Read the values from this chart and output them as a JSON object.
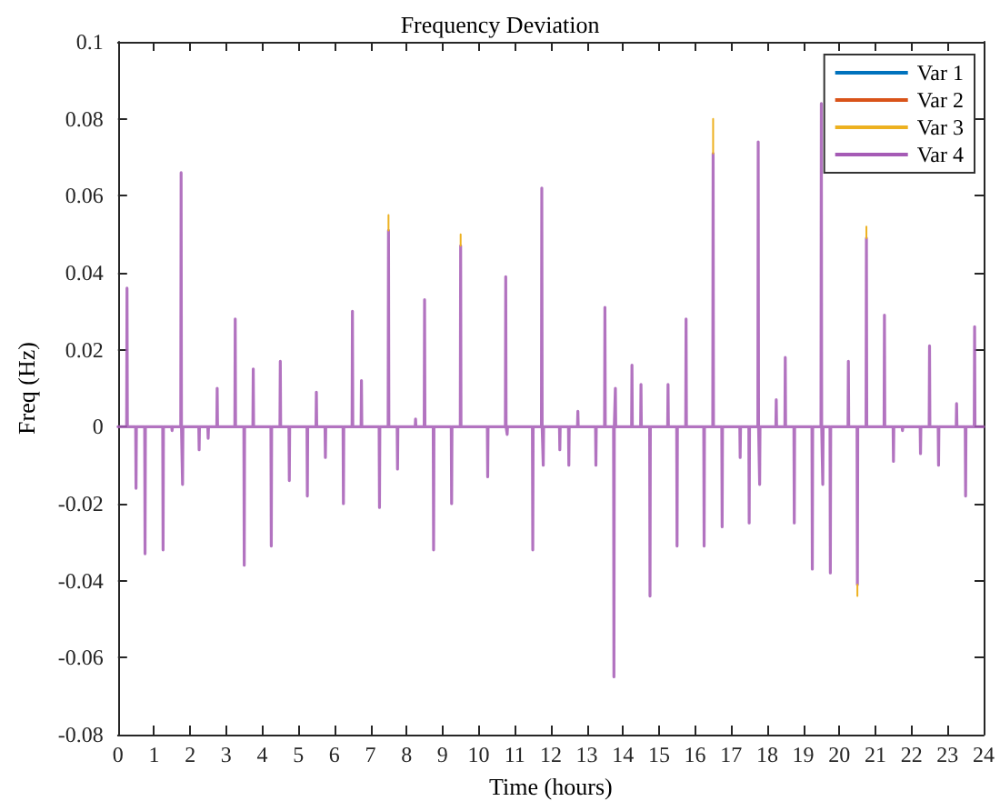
{
  "chart_data": {
    "type": "line",
    "title": "Frequency Deviation",
    "xlabel": "Time (hours)",
    "ylabel": "Freq (Hz)",
    "x": [
      0,
      0.24,
      0.25,
      0.26,
      0.49,
      0.5,
      0.51,
      0.74,
      0.75,
      0.76,
      1.24,
      1.25,
      1.26,
      1.49,
      1.5,
      1.51,
      1.74,
      1.75,
      1.76,
      1.78,
      1.79,
      1.8,
      2.24,
      2.25,
      2.26,
      2.49,
      2.5,
      2.51,
      2.74,
      2.75,
      2.76,
      3.24,
      3.25,
      3.26,
      3.49,
      3.5,
      3.51,
      3.74,
      3.75,
      3.76,
      4.24,
      4.25,
      4.26,
      4.49,
      4.5,
      4.51,
      4.74,
      4.75,
      4.76,
      5.24,
      5.25,
      5.26,
      5.49,
      5.5,
      5.51,
      5.74,
      5.75,
      5.76,
      6.24,
      6.25,
      6.26,
      6.49,
      6.5,
      6.51,
      6.74,
      6.75,
      6.76,
      7.24,
      7.25,
      7.26,
      7.49,
      7.5,
      7.51,
      7.74,
      7.75,
      7.76,
      8.24,
      8.25,
      8.26,
      8.49,
      8.5,
      8.51,
      8.74,
      8.75,
      8.76,
      9.24,
      9.25,
      9.26,
      9.49,
      9.5,
      9.51,
      10.24,
      10.25,
      10.26,
      10.74,
      10.75,
      10.76,
      10.78,
      10.79,
      10.8,
      11.49,
      11.5,
      11.51,
      11.74,
      11.75,
      11.76,
      11.78,
      11.79,
      11.8,
      12.24,
      12.25,
      12.26,
      12.49,
      12.5,
      12.51,
      12.74,
      12.75,
      12.76,
      13.24,
      13.25,
      13.26,
      13.49,
      13.5,
      13.51,
      13.74,
      13.75,
      13.76,
      13.78,
      13.79,
      13.8,
      14.24,
      14.25,
      14.26,
      14.49,
      14.5,
      14.51,
      14.74,
      14.75,
      14.76,
      15.24,
      15.25,
      15.26,
      15.49,
      15.5,
      15.51,
      15.74,
      15.75,
      15.76,
      16.24,
      16.25,
      16.26,
      16.49,
      16.5,
      16.51,
      16.74,
      16.75,
      16.76,
      17.24,
      17.25,
      17.26,
      17.49,
      17.5,
      17.51,
      17.74,
      17.75,
      17.76,
      17.78,
      17.79,
      17.8,
      18.24,
      18.25,
      18.26,
      18.49,
      18.5,
      18.51,
      18.74,
      18.75,
      18.76,
      19.24,
      19.25,
      19.26,
      19.49,
      19.5,
      19.51,
      19.53,
      19.54,
      19.55,
      19.74,
      19.75,
      19.76,
      20.24,
      20.25,
      20.26,
      20.49,
      20.5,
      20.51,
      20.74,
      20.75,
      20.76,
      21.24,
      21.25,
      21.26,
      21.49,
      21.5,
      21.51,
      21.74,
      21.75,
      21.76,
      22.24,
      22.25,
      22.26,
      22.49,
      22.5,
      22.51,
      22.74,
      22.75,
      22.76,
      23.24,
      23.25,
      23.26,
      23.49,
      23.5,
      23.51,
      23.74,
      23.75,
      23.76,
      24
    ],
    "series": [
      {
        "name": "Var 1",
        "color": "#0072bd",
        "values": [
          null,
          null,
          null,
          null,
          null,
          null,
          null,
          null,
          null,
          null,
          null,
          null,
          null,
          null,
          null,
          null,
          null,
          null,
          null,
          null,
          null,
          null,
          null,
          null,
          null,
          null,
          null,
          null,
          null,
          null,
          null,
          null,
          null,
          null,
          null,
          null,
          null,
          null,
          null,
          null,
          null,
          null,
          null,
          null,
          null,
          null,
          null,
          null,
          null,
          null,
          null,
          null,
          null,
          null,
          null,
          null,
          null,
          null,
          null,
          null,
          null,
          null,
          null,
          null,
          null,
          null,
          null,
          null,
          null,
          null,
          null,
          null,
          null,
          null,
          null,
          null,
          null,
          null,
          null,
          null,
          null,
          null,
          null,
          null,
          null,
          null,
          null,
          null,
          null,
          null,
          null,
          null,
          null,
          null,
          null,
          null,
          null,
          null,
          null,
          null,
          null,
          null,
          null,
          null,
          null,
          null,
          null,
          null,
          null,
          null,
          null,
          null,
          null,
          null,
          null,
          null,
          null,
          null,
          null,
          null,
          null,
          null,
          null,
          null,
          null,
          null,
          null,
          null,
          null,
          null,
          null,
          null,
          null,
          null,
          null,
          null,
          null,
          null,
          null,
          null,
          null,
          null,
          null,
          null,
          null,
          null,
          null,
          null,
          null,
          null,
          null,
          null,
          null,
          null,
          null,
          null,
          null,
          null,
          null,
          null,
          null,
          null,
          null,
          null,
          null,
          null,
          null,
          null,
          null,
          null,
          null,
          null,
          null,
          null,
          null,
          null,
          null,
          null,
          null,
          null,
          null,
          null,
          null,
          null,
          null,
          null,
          null,
          null,
          null,
          null,
          null,
          null,
          null,
          null,
          null,
          null,
          null,
          null,
          null,
          null,
          null,
          null,
          null,
          null,
          null,
          null,
          null,
          null,
          null,
          null,
          null,
          null,
          null,
          null,
          null,
          null,
          null,
          null,
          null,
          null,
          null,
          null,
          null,
          null,
          null,
          null,
          null
        ]
      },
      {
        "name": "Var 2",
        "color": "#d95319",
        "values": [
          null,
          null,
          null,
          null,
          null,
          null,
          null,
          null,
          null,
          null,
          null,
          null,
          null,
          null,
          null,
          null,
          null,
          null,
          null,
          null,
          null,
          null,
          null,
          null,
          null,
          null,
          null,
          null,
          null,
          null,
          null,
          null,
          null,
          null,
          null,
          null,
          null,
          null,
          null,
          null,
          null,
          null,
          null,
          null,
          null,
          null,
          null,
          null,
          null,
          null,
          null,
          null,
          null,
          null,
          null,
          null,
          null,
          null,
          null,
          null,
          null,
          null,
          null,
          null,
          null,
          null,
          null,
          null,
          null,
          null,
          null,
          null,
          null,
          null,
          null,
          null,
          null,
          null,
          null,
          null,
          null,
          null,
          null,
          null,
          null,
          null,
          null,
          null,
          null,
          null,
          null,
          null,
          null,
          null,
          null,
          null,
          null,
          null,
          null,
          null,
          null,
          null,
          null,
          null,
          null,
          null,
          null,
          null,
          null,
          null,
          null,
          null,
          null,
          null,
          null,
          null,
          null,
          null,
          null,
          null,
          null,
          null,
          null,
          null,
          null,
          null,
          null,
          null,
          null,
          null,
          null,
          null,
          null,
          null,
          null,
          null,
          null,
          null,
          null,
          null,
          null,
          null,
          null,
          null,
          null,
          null,
          null,
          null,
          null,
          null,
          null,
          null,
          null,
          null,
          null,
          null,
          null,
          null,
          null,
          null,
          null,
          null,
          null,
          null,
          null,
          null,
          null,
          null,
          null,
          null,
          null,
          null,
          null,
          null,
          null,
          null,
          null,
          null,
          null,
          null,
          null,
          null,
          null,
          null,
          null,
          null,
          null,
          null,
          null,
          null,
          null,
          null,
          null,
          null,
          null,
          null,
          null,
          null,
          null,
          null,
          null,
          null,
          null,
          null,
          null,
          null,
          null,
          null,
          null,
          null,
          null,
          null,
          null,
          null,
          null,
          null,
          null,
          null,
          null,
          null,
          null,
          null,
          null,
          null,
          null,
          null,
          null
        ]
      },
      {
        "name": "Var 3",
        "color": "#edb120",
        "x": [
          7.5,
          7.5,
          null,
          9.5,
          9.5,
          null,
          16.5,
          16.5,
          null,
          20.5,
          20.5,
          null,
          20.75,
          20.75
        ],
        "values": [
          0.051,
          0.055,
          null,
          0.047,
          0.05,
          null,
          0.071,
          0.08,
          null,
          -0.041,
          -0.044,
          null,
          0.049,
          0.052
        ]
      },
      {
        "name": "Var 4",
        "color": "#a55bb5",
        "values": [
          0,
          0,
          0.036,
          0,
          0,
          -0.016,
          0,
          0,
          -0.033,
          0,
          0,
          -0.032,
          0,
          0,
          -0.001,
          0,
          0,
          0.066,
          0,
          0,
          -0.015,
          0,
          0,
          -0.006,
          0,
          0,
          -0.003,
          0,
          0,
          0.01,
          0,
          0,
          0.028,
          0,
          0,
          -0.036,
          0,
          0,
          0.015,
          0,
          0,
          -0.031,
          0,
          0,
          0.017,
          0,
          0,
          -0.014,
          0,
          0,
          -0.018,
          0,
          0,
          0.009,
          0,
          0,
          -0.008,
          0,
          0,
          -0.02,
          0,
          0,
          0.03,
          0,
          0,
          0.012,
          0,
          0,
          -0.021,
          0,
          0,
          0.051,
          0,
          0,
          -0.011,
          0,
          0,
          0.002,
          0,
          0,
          0.033,
          0,
          0,
          -0.032,
          0,
          0,
          -0.02,
          0,
          0,
          0.047,
          0,
          0,
          -0.013,
          0,
          0,
          0.039,
          0,
          0,
          -0.002,
          0,
          0,
          -0.032,
          0,
          0,
          0.062,
          0,
          0,
          -0.01,
          0,
          0,
          -0.006,
          0,
          0,
          -0.01,
          0,
          0,
          0.004,
          0,
          0,
          -0.01,
          0,
          0,
          0.031,
          0,
          0,
          -0.065,
          0,
          0,
          0.01,
          0,
          0,
          0.016,
          0,
          0,
          0.011,
          0,
          0,
          -0.044,
          0,
          0,
          0.011,
          0,
          0,
          -0.031,
          0,
          0,
          0.028,
          0,
          0,
          -0.031,
          0,
          0,
          0.071,
          0,
          0,
          -0.026,
          0,
          0,
          -0.008,
          0,
          0,
          -0.025,
          0,
          0,
          0.074,
          0,
          0,
          -0.015,
          0,
          0,
          0.007,
          0,
          0,
          0.018,
          0,
          0,
          -0.025,
          0,
          0,
          -0.037,
          0,
          0,
          0.084,
          0,
          0,
          -0.015,
          0,
          0,
          -0.038,
          0,
          0,
          0.017,
          0,
          0,
          -0.041,
          0,
          0,
          0.049,
          0,
          0,
          0.029,
          0,
          0,
          -0.009,
          0,
          0,
          -0.001,
          0,
          0,
          -0.007,
          0,
          0,
          0.021,
          0,
          0,
          -0.01,
          0,
          0,
          0.006,
          0,
          0,
          -0.018,
          0,
          0,
          0.026,
          0,
          0
        ]
      }
    ],
    "xlim": [
      0,
      24
    ],
    "xticks": [
      0,
      1,
      2,
      3,
      4,
      5,
      6,
      7,
      8,
      9,
      10,
      11,
      12,
      13,
      14,
      15,
      16,
      17,
      18,
      19,
      20,
      21,
      22,
      23,
      24
    ],
    "ylim": [
      -0.08,
      0.1
    ],
    "yticks": [
      -0.08,
      -0.06,
      -0.04,
      -0.02,
      0,
      0.02,
      0.04,
      0.06,
      0.08,
      0.1
    ],
    "grid": false,
    "legend": "top right",
    "marker": "none",
    "line_style": "solid"
  }
}
